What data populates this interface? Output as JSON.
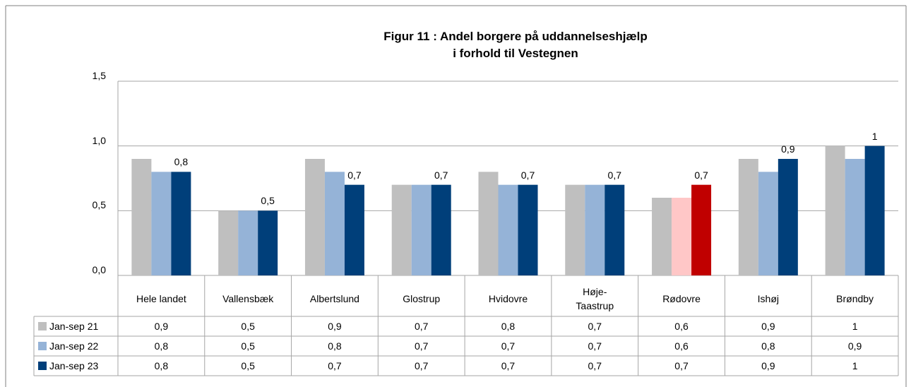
{
  "chart_data": {
    "type": "bar",
    "title": "Figur 11 : Andel borgere på uddannelseshjælp\ni forhold til Vestegnen",
    "categories": [
      "Hele landet",
      "Vallensbæk",
      "Albertslund",
      "Glostrup",
      "Hvidovre",
      "Høje-\nTaastrup",
      "Rødovre",
      "Ishøj",
      "Brøndby"
    ],
    "series": [
      {
        "name": "Jan-sep 21",
        "color": "#bfbfbf",
        "colors": [
          "#bfbfbf",
          "#bfbfbf",
          "#bfbfbf",
          "#bfbfbf",
          "#bfbfbf",
          "#bfbfbf",
          "#bfbfbf",
          "#bfbfbf",
          "#bfbfbf"
        ],
        "values": [
          0.9,
          0.5,
          0.9,
          0.7,
          0.8,
          0.7,
          0.6,
          0.9,
          1
        ],
        "value_labels": [
          "0,9",
          "0,5",
          "0,9",
          "0,7",
          "0,8",
          "0,7",
          "0,6",
          "0,9",
          "1"
        ]
      },
      {
        "name": "Jan-sep 22",
        "color": "#95b3d7",
        "colors": [
          "#95b3d7",
          "#95b3d7",
          "#95b3d7",
          "#95b3d7",
          "#95b3d7",
          "#95b3d7",
          "#ffc7c7",
          "#95b3d7",
          "#95b3d7"
        ],
        "values": [
          0.8,
          0.5,
          0.8,
          0.7,
          0.7,
          0.7,
          0.6,
          0.8,
          0.9
        ],
        "value_labels": [
          "0,8",
          "0,5",
          "0,8",
          "0,7",
          "0,7",
          "0,7",
          "0,6",
          "0,8",
          "0,9"
        ]
      },
      {
        "name": "Jan-sep 23",
        "color": "#003f7a",
        "colors": [
          "#003f7a",
          "#003f7a",
          "#003f7a",
          "#003f7a",
          "#003f7a",
          "#003f7a",
          "#c00000",
          "#003f7a",
          "#003f7a"
        ],
        "values": [
          0.8,
          0.5,
          0.7,
          0.7,
          0.7,
          0.7,
          0.7,
          0.9,
          1
        ],
        "value_labels": [
          "0,8",
          "0,5",
          "0,7",
          "0,7",
          "0,7",
          "0,7",
          "0,7",
          "0,9",
          "1"
        ]
      }
    ],
    "ylim": [
      0,
      1.5
    ],
    "yticks": [
      {
        "value": 0,
        "label": "0,0"
      },
      {
        "value": 0.5,
        "label": "0,5"
      },
      {
        "value": 1,
        "label": "1,0"
      },
      {
        "value": 1.5,
        "label": "1,5"
      }
    ],
    "grid": true
  }
}
